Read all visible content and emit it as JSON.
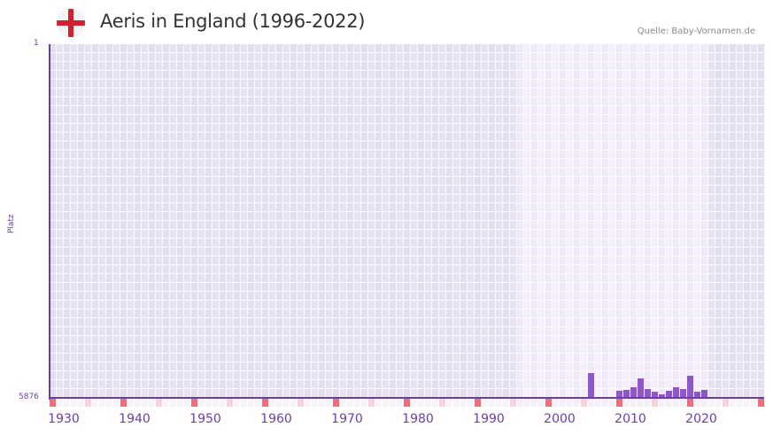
{
  "header": {
    "title": "Aeris in England (1996-2022)",
    "source": "Quelle: Baby-Vornamen.de",
    "flag_icon": "england-flag-icon"
  },
  "colors": {
    "accent": "#6b3fa0",
    "bar": "#8e57c8",
    "decade_marker": "#e8727c",
    "half_decade_marker": "#f5d3dd",
    "bg_outside": "#e3dfee",
    "bg_outside_alt": "#e7e4f0",
    "bg_inside": "#ede9f8",
    "bg_inside_alt": "#f3f0fb",
    "flag_cross": "#d0202f"
  },
  "chart_data": {
    "type": "bar",
    "title": "Aeris in England (1996-2022)",
    "xlabel": "",
    "ylabel": "Platz",
    "ylim": [
      1,
      5876
    ],
    "y_inverted": true,
    "y_ticks": [
      "1",
      "5876"
    ],
    "x_range": [
      1930,
      2030
    ],
    "x_ticks": [
      "1930",
      "1940",
      "1950",
      "1960",
      "1970",
      "1980",
      "1990",
      "2000",
      "2010",
      "2020"
    ],
    "highlight_range": [
      1996,
      2022
    ],
    "grid": true,
    "legend": null,
    "categories": [
      2006,
      2010,
      2011,
      2012,
      2013,
      2014,
      2015,
      2016,
      2017,
      2018,
      2019,
      2020,
      2021,
      2022
    ],
    "values": [
      5465,
      5759,
      5744,
      5700,
      5553,
      5729,
      5773,
      5817,
      5759,
      5700,
      5729,
      5509,
      5773,
      5744
    ]
  }
}
